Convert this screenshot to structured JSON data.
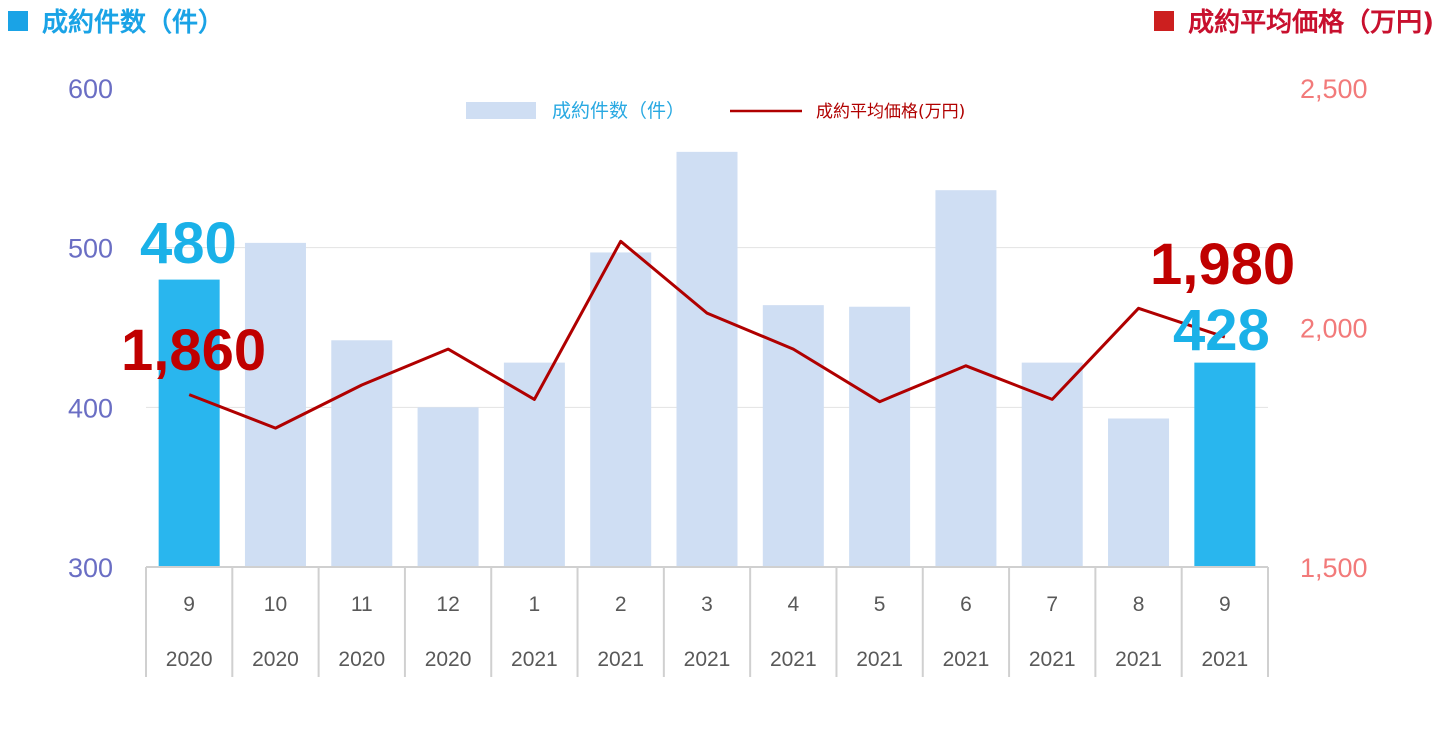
{
  "titles": {
    "left": "成約件数（件）",
    "right": "成約平均価格（万円)"
  },
  "legend": {
    "bar": "成約件数（件）",
    "line": "成約平均価格(万円)"
  },
  "colors": {
    "bar": "#cfdef3",
    "bar_highlight": "#29b6ee",
    "line": "#b00000",
    "left_axis": "#6a6ec4",
    "right_axis": "#f27a7a",
    "callout_blue": "#1ab1e8",
    "callout_red": "#c00000"
  },
  "chart_data": {
    "type": "bar",
    "categories": [
      {
        "month": "9",
        "year": "2020"
      },
      {
        "month": "10",
        "year": "2020"
      },
      {
        "month": "11",
        "year": "2020"
      },
      {
        "month": "12",
        "year": "2020"
      },
      {
        "month": "1",
        "year": "2021"
      },
      {
        "month": "2",
        "year": "2021"
      },
      {
        "month": "3",
        "year": "2021"
      },
      {
        "month": "4",
        "year": "2021"
      },
      {
        "month": "5",
        "year": "2021"
      },
      {
        "month": "6",
        "year": "2021"
      },
      {
        "month": "7",
        "year": "2021"
      },
      {
        "month": "8",
        "year": "2021"
      },
      {
        "month": "9",
        "year": "2021"
      }
    ],
    "series": [
      {
        "name": "成約件数（件）",
        "type": "bar",
        "axis": "left",
        "values": [
          480,
          503,
          442,
          400,
          428,
          497,
          560,
          464,
          463,
          536,
          428,
          393,
          428
        ],
        "highlight": [
          0,
          12
        ]
      },
      {
        "name": "成約平均価格(万円)",
        "type": "line",
        "axis": "right",
        "values": [
          1860,
          1790,
          1880,
          1955,
          1850,
          2180,
          2030,
          1955,
          1845,
          1920,
          1850,
          2040,
          1980
        ]
      }
    ],
    "y_left": {
      "min": 300,
      "max": 600,
      "ticks": [
        "300",
        "400",
        "500",
        "600"
      ]
    },
    "y_right": {
      "min": 1500,
      "max": 2500,
      "ticks": [
        "1,500",
        "2,000",
        "2,500"
      ]
    },
    "gridlines": [
      400,
      500
    ],
    "callouts": {
      "first_bar": "480",
      "last_bar": "428",
      "first_line": "1,860",
      "last_line": "1,980"
    }
  }
}
